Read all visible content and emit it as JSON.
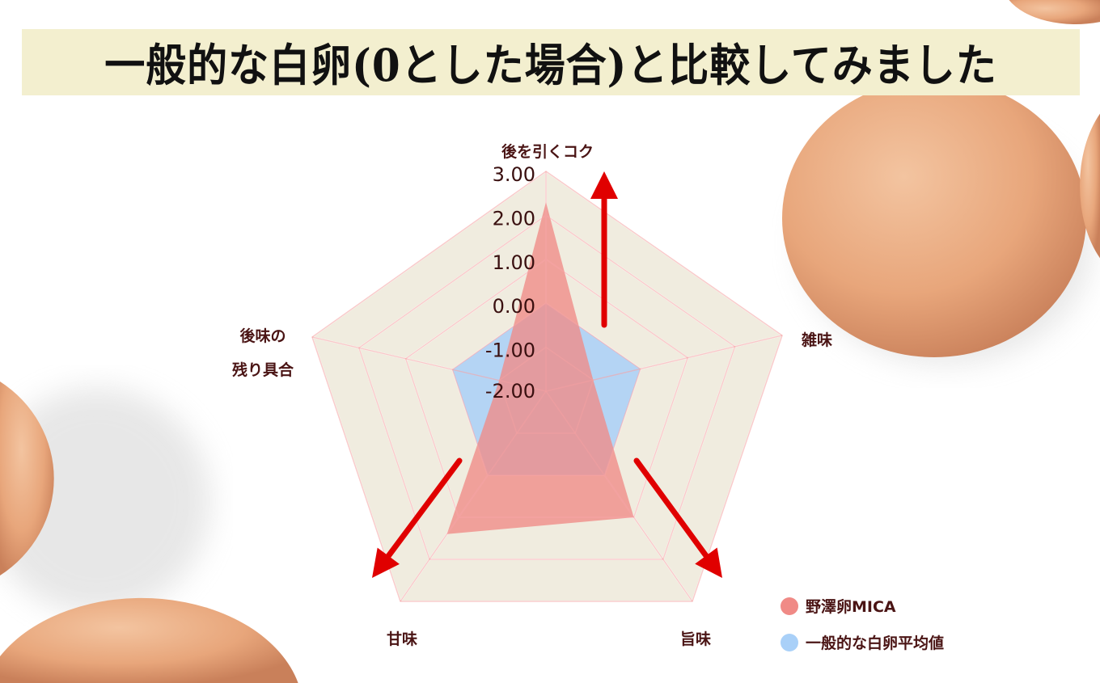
{
  "title": "一般的な白卵(0とした場合)と比較してみました",
  "chart_data": {
    "type": "radar",
    "title": "一般的な白卵(0とした場合)と比較してみました",
    "axes": [
      "後を引くコク",
      "雑味",
      "旨味",
      "甘味",
      "後味の残り具合"
    ],
    "axis_label_lines": {
      "後味の残り具合": [
        "後味の",
        "残り具合"
      ]
    },
    "range": [
      -2,
      3
    ],
    "ticks": [
      "3.00",
      "2.00",
      "1.00",
      "0.00",
      "-1.00",
      "-2.00"
    ],
    "tick_values": [
      3,
      2,
      1,
      0,
      -1,
      -2
    ],
    "grid": true,
    "legend_position": "bottom-right",
    "series": [
      {
        "name": "野澤卵MICA",
        "values": [
          2.3,
          -1.0,
          1.0,
          1.4,
          -1.0
        ],
        "color": "#f08a86"
      },
      {
        "name": "一般的な白卵平均値",
        "values": [
          0,
          0,
          0,
          0,
          0
        ],
        "color": "#a9d0f8"
      }
    ],
    "annotations": "red arrows pointing outward along 後を引くコク, 旨味 and 甘味 axes",
    "colors": {
      "grid_fill": "#f0ecdf",
      "grid_line": "#ffffff",
      "arrow": "#e00000",
      "text": "#4a1414"
    }
  }
}
